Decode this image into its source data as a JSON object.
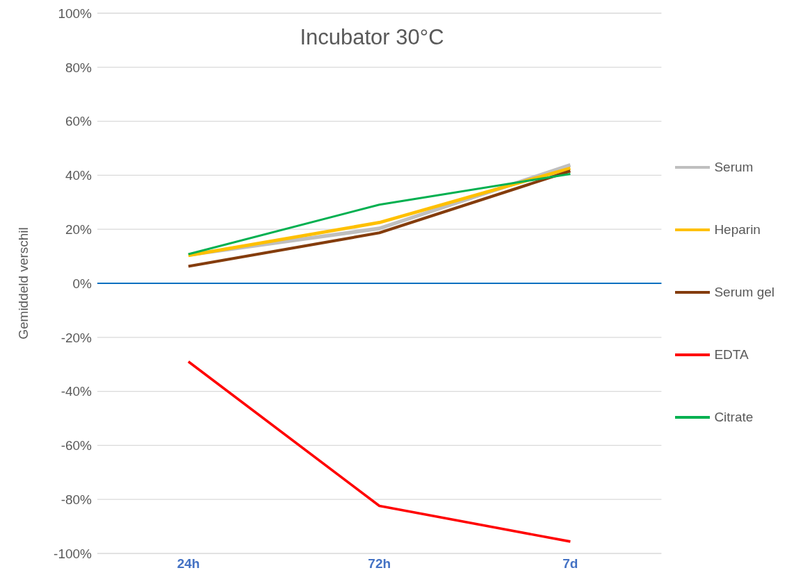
{
  "chart_data": {
    "type": "line",
    "title": "Incubator 30°C",
    "ylabel": "Gemiddeld verschil",
    "categories": [
      "24h",
      "72h",
      "7d"
    ],
    "series": [
      {
        "name": "Serum",
        "color": "#bfbfbf",
        "values": [
          10.5,
          20.3,
          43.8
        ]
      },
      {
        "name": "Heparin",
        "color": "#ffc000",
        "values": [
          10.3,
          22.5,
          42.6
        ]
      },
      {
        "name": "Serum gel",
        "color": "#843c0c",
        "values": [
          6.3,
          18.7,
          41.6
        ]
      },
      {
        "name": "EDTA",
        "color": "#ff0000",
        "values": [
          -29,
          -82.4,
          -95.6
        ]
      },
      {
        "name": "Citrate",
        "color": "#00b050",
        "values": [
          10.8,
          29.1,
          40.5
        ]
      }
    ],
    "ylim": [
      -100,
      100
    ],
    "yticks": [
      {
        "value": -100,
        "label": "-100%"
      },
      {
        "value": -80,
        "label": "-80%"
      },
      {
        "value": -60,
        "label": "-60%"
      },
      {
        "value": -40,
        "label": "-40%"
      },
      {
        "value": -20,
        "label": "-20%"
      },
      {
        "value": 0,
        "label": "0%"
      },
      {
        "value": 20,
        "label": "20%"
      },
      {
        "value": 40,
        "label": "40%"
      },
      {
        "value": 60,
        "label": "60%"
      },
      {
        "value": 80,
        "label": "80%"
      },
      {
        "value": 100,
        "label": "100%"
      }
    ],
    "ref_lines": [
      {
        "axis": "y",
        "value": 0,
        "color": "#0070c0"
      }
    ],
    "grid": "y",
    "legend": "right",
    "marker": "none",
    "line_style": "solid"
  }
}
